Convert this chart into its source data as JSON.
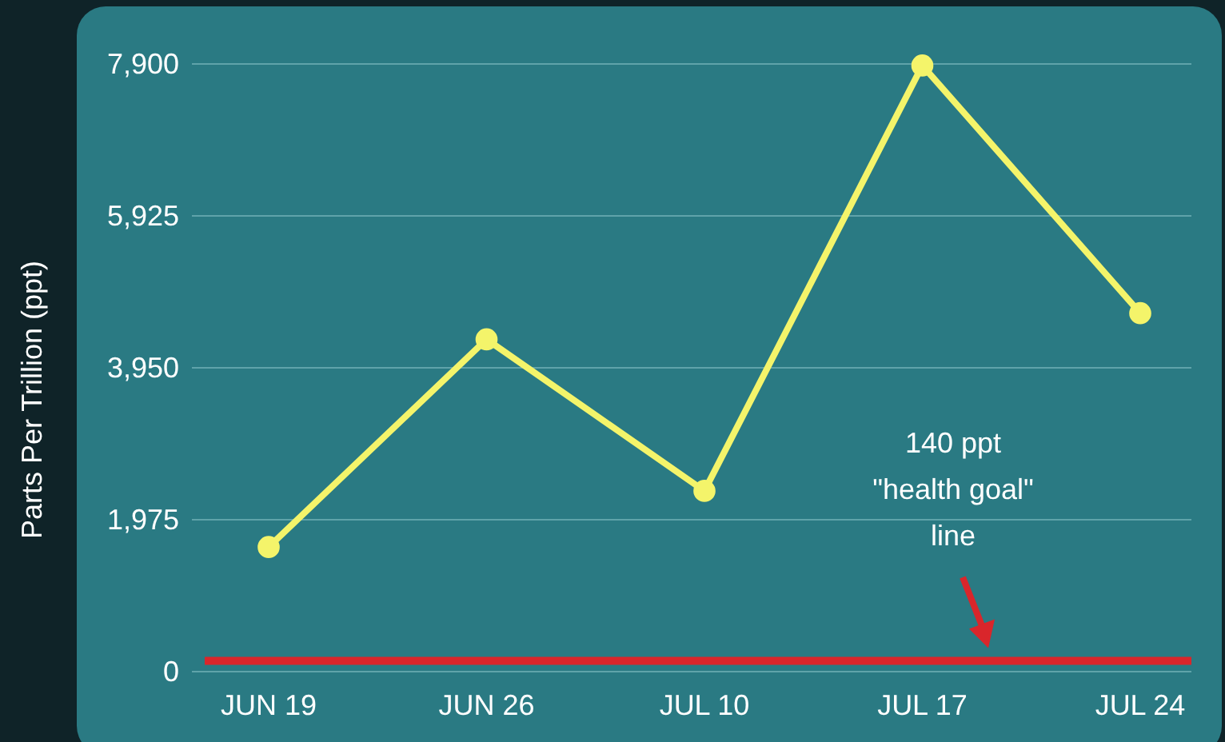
{
  "chart_data": {
    "type": "line",
    "ylabel": "Parts Per Trillion (ppt)",
    "categories": [
      "JUN 19",
      "JUN 26",
      "JUL 10",
      "JUL 17",
      "JUL 24"
    ],
    "series": [
      {
        "color": "#f4f46a",
        "values": [
          1620,
          4320,
          2350,
          7880,
          4660
        ]
      }
    ],
    "ylim": [
      0,
      7900
    ],
    "yticks": [
      {
        "value": 0,
        "label": "0"
      },
      {
        "value": 1975,
        "label": "1,975"
      },
      {
        "value": 3950,
        "label": "3,950"
      },
      {
        "value": 5925,
        "label": "5,925"
      },
      {
        "value": 7900,
        "label": "7,900"
      }
    ],
    "grid": "y",
    "marker": "circle",
    "line_style": "solid",
    "annotations": [
      "140 ppt \"health goal\" line"
    ],
    "ref_lines": [
      {
        "axis": "y",
        "value": 140,
        "color": "#d9262b"
      }
    ]
  }
}
